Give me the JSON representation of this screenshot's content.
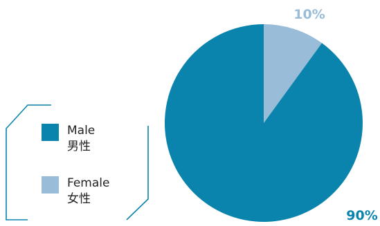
{
  "chart_data": {
    "type": "pie",
    "categories": [
      "Male\n男性",
      "Female\n女性"
    ],
    "values": [
      90,
      10
    ],
    "slices": [
      {
        "label_en": "Male",
        "label_zh": "男性",
        "value": 90,
        "display": "90%",
        "color": "#0a84ad"
      },
      {
        "label_en": "Female",
        "label_zh": "女性",
        "value": 10,
        "display": "10%",
        "color": "#99bdd8"
      }
    ],
    "title": "",
    "start_angle_deg": 0,
    "direction": "clockwise",
    "legend_position": "left"
  },
  "legend": {
    "items": [
      {
        "en": "Male",
        "zh": "男性"
      },
      {
        "en": "Female",
        "zh": "女性"
      }
    ]
  },
  "colors": {
    "male": "#0a84ad",
    "female": "#99bdd8",
    "female_label": "#99bdd8",
    "frame_line": "#0a84ad",
    "text": "#222222"
  }
}
